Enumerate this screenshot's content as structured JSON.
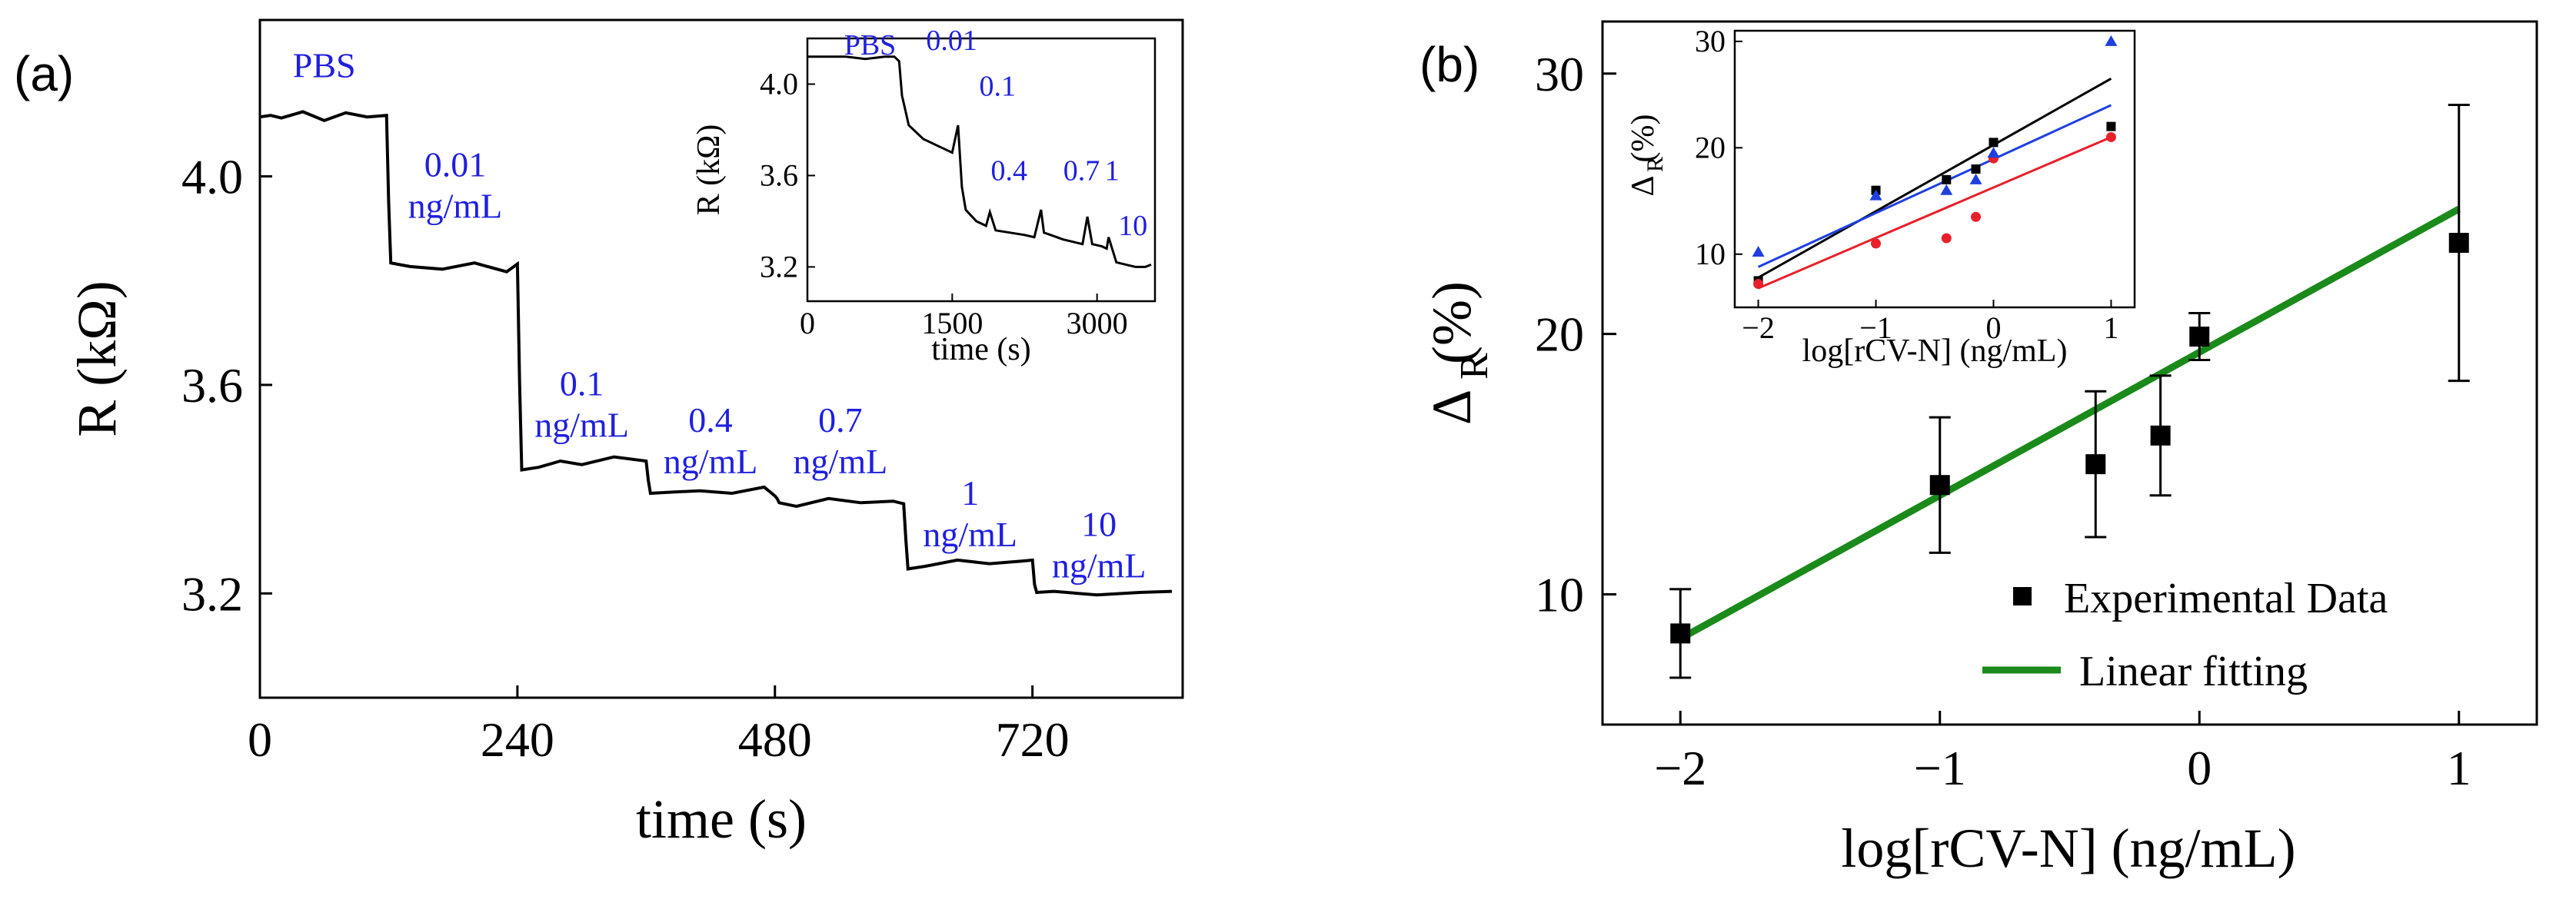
{
  "chart_data": [
    {
      "id": "panel-a",
      "panel_label": "(a)",
      "type": "line",
      "title": "",
      "xlabel": "time (s)",
      "ylabel": "R (kΩ)",
      "xlim": [
        0,
        860
      ],
      "ylim": [
        3.0,
        4.3
      ],
      "xticks": [
        0,
        240,
        480,
        720
      ],
      "yticks": [
        3.2,
        3.6,
        4.0
      ],
      "ytick_labels": [
        "3.2",
        "3.6",
        "4.0"
      ],
      "line_color": "#000000",
      "annotation_color": "#1f1fe0",
      "x": [
        0,
        10,
        20,
        40,
        60,
        80,
        100,
        118,
        120,
        122,
        140,
        170,
        200,
        230,
        240,
        242,
        244,
        260,
        280,
        300,
        330,
        360,
        362,
        364,
        380,
        410,
        440,
        470,
        480,
        482,
        484,
        500,
        530,
        560,
        590,
        600,
        602,
        604,
        620,
        650,
        680,
        710,
        720,
        722,
        724,
        740,
        780,
        820,
        850
      ],
      "y": [
        4.11,
        4.12,
        4.11,
        4.12,
        4.11,
        4.12,
        4.11,
        4.12,
        3.95,
        3.83,
        3.83,
        3.82,
        3.83,
        3.82,
        3.83,
        3.6,
        3.44,
        3.44,
        3.45,
        3.45,
        3.46,
        3.45,
        3.42,
        3.39,
        3.39,
        3.4,
        3.39,
        3.4,
        3.39,
        3.38,
        3.37,
        3.37,
        3.38,
        3.37,
        3.38,
        3.37,
        3.3,
        3.25,
        3.25,
        3.26,
        3.26,
        3.26,
        3.26,
        3.22,
        3.2,
        3.2,
        3.2,
        3.2,
        3.2
      ],
      "annotations": [
        {
          "lines": [
            "PBS"
          ],
          "x": 60,
          "y": 4.19
        },
        {
          "lines": [
            "0.01",
            "ng/mL"
          ],
          "x": 182,
          "y": 4.0
        },
        {
          "lines": [
            "0.1",
            "ng/mL"
          ],
          "x": 300,
          "y": 3.58
        },
        {
          "lines": [
            "0.4",
            "ng/mL"
          ],
          "x": 420,
          "y": 3.51
        },
        {
          "lines": [
            "0.7",
            "ng/mL"
          ],
          "x": 541,
          "y": 3.51
        },
        {
          "lines": [
            "1",
            "ng/mL"
          ],
          "x": 662,
          "y": 3.37
        },
        {
          "lines": [
            "10",
            "ng/mL"
          ],
          "x": 782,
          "y": 3.31
        }
      ],
      "inset": {
        "type": "line",
        "xlabel": "time (s)",
        "ylabel": "R (kΩ)",
        "xlim": [
          0,
          3600
        ],
        "ylim": [
          3.05,
          4.2
        ],
        "xticks": [
          0,
          1500,
          3000
        ],
        "yticks": [
          3.2,
          3.6,
          4.0
        ],
        "ytick_labels": [
          "3.2",
          "3.6",
          "4.0"
        ],
        "x": [
          0,
          200,
          400,
          600,
          800,
          900,
          950,
          980,
          1050,
          1200,
          1350,
          1450,
          1500,
          1560,
          1600,
          1640,
          1750,
          1850,
          1890,
          1950,
          2100,
          2250,
          2350,
          2420,
          2450,
          2520,
          2650,
          2750,
          2850,
          2900,
          2950,
          3050,
          3100,
          3120,
          3200,
          3300,
          3400,
          3500,
          3560
        ],
        "y": [
          4.12,
          4.12,
          4.12,
          4.11,
          4.12,
          4.12,
          4.1,
          3.95,
          3.82,
          3.76,
          3.73,
          3.71,
          3.7,
          3.82,
          3.55,
          3.45,
          3.4,
          3.38,
          3.44,
          3.36,
          3.35,
          3.34,
          3.33,
          3.45,
          3.35,
          3.34,
          3.32,
          3.31,
          3.3,
          3.42,
          3.3,
          3.29,
          3.28,
          3.33,
          3.22,
          3.21,
          3.2,
          3.2,
          3.21
        ],
        "annotations": [
          {
            "label": "PBS",
            "x": 380,
            "y": 4.13
          },
          {
            "label": "0.01",
            "x": 1230,
            "y": 4.15
          },
          {
            "label": "0.1",
            "x": 1780,
            "y": 3.95
          },
          {
            "label": "0.4",
            "x": 1900,
            "y": 3.58
          },
          {
            "label": "0.7",
            "x": 2650,
            "y": 3.58
          },
          {
            "label": "1",
            "x": 3080,
            "y": 3.58
          },
          {
            "label": "10",
            "x": 3220,
            "y": 3.34
          }
        ]
      }
    },
    {
      "id": "panel-b",
      "panel_label": "(b)",
      "type": "scatter",
      "title": "",
      "xlabel": "log[rCV-N] (ng/mL)",
      "ylabel": "Δ_R (%)",
      "ylabel_main": "Δ",
      "ylabel_sub": "R",
      "ylabel_tail": "(%)",
      "xlim": [
        -2.3,
        1.3
      ],
      "ylim": [
        5,
        32
      ],
      "xticks": [
        -2,
        -1,
        0,
        1
      ],
      "xtick_labels": [
        "−2",
        "−1",
        "0",
        "1"
      ],
      "yticks": [
        10,
        20,
        30
      ],
      "ytick_labels": [
        "10",
        "20",
        "30"
      ],
      "series": [
        {
          "name": "Experimental Data",
          "marker": "square",
          "color": "#000000",
          "x": [
            -2,
            -1,
            -0.4,
            -0.15,
            0,
            1
          ],
          "y": [
            8.5,
            14.2,
            15.0,
            16.1,
            19.9,
            23.5
          ],
          "err": [
            1.7,
            2.6,
            2.8,
            2.3,
            0.9,
            5.3
          ]
        },
        {
          "name": "Linear fitting",
          "type": "line",
          "color": "#1a8a1a",
          "x": [
            -2,
            1
          ],
          "y": [
            8.3,
            24.8
          ]
        }
      ],
      "legend_position": "bottom-right",
      "inset": {
        "type": "scatter",
        "xlabel": "log[rCV-N] (ng/mL)",
        "ylabel": "Δ_R (%)",
        "ylabel_main": "Δ",
        "ylabel_sub": "R",
        "ylabel_tail": "(%)",
        "xlim": [
          -2.2,
          1.2
        ],
        "ylim": [
          5,
          31
        ],
        "xticks": [
          -2,
          -1,
          0,
          1
        ],
        "xtick_labels": [
          "−2",
          "−1",
          "0",
          "1"
        ],
        "yticks": [
          10,
          20,
          30
        ],
        "ytick_labels": [
          "10",
          "20",
          "30"
        ],
        "series": [
          {
            "name": "black",
            "color": "#000000",
            "marker": "square",
            "x": [
              -2,
              -1,
              -0.4,
              -0.15,
              0,
              1
            ],
            "y": [
              7.5,
              16,
              17,
              18,
              20.5,
              22
            ],
            "fit": [
              7.8,
              26.5
            ]
          },
          {
            "name": "red",
            "color": "#e8202a",
            "marker": "circle",
            "x": [
              -2,
              -1,
              -0.4,
              -0.15,
              0,
              1
            ],
            "y": [
              7.2,
              11,
              11.5,
              13.5,
              19,
              21
            ],
            "fit": [
              6.8,
              21
            ]
          },
          {
            "name": "blue",
            "color": "#1f3fe0",
            "marker": "triangle",
            "x": [
              -2,
              -1,
              -0.4,
              -0.15,
              0,
              1
            ],
            "y": [
              10.2,
              15.5,
              16,
              17,
              19.5,
              30
            ],
            "fit": [
              8.8,
              24
            ]
          }
        ]
      }
    }
  ]
}
